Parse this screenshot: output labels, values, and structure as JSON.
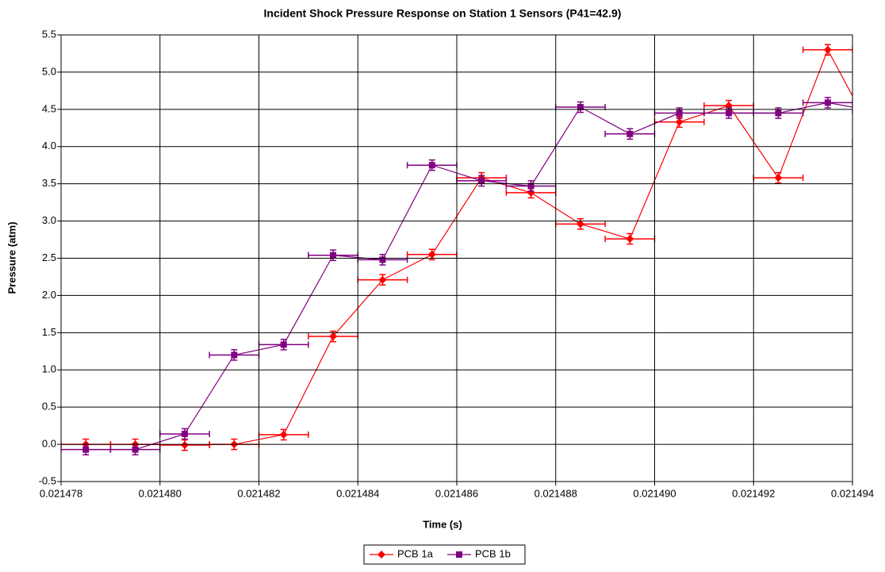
{
  "chart_data": {
    "type": "scatter_line",
    "title": "Incident Shock Pressure Response on Station 1 Sensors (P41=42.9)",
    "xlabel": "Time (s)",
    "ylabel": "Pressure (atm)",
    "x": [
      0.0214785,
      0.0214795,
      0.0214805,
      0.0214815,
      0.0214825,
      0.0214835,
      0.0214845,
      0.0214855,
      0.0214865,
      0.0214875,
      0.0214885,
      0.0214895,
      0.0214905,
      0.0214915,
      0.0214925,
      0.0214935,
      0.0214945
    ],
    "series": [
      {
        "name": "PCB 1a",
        "color": "#ff0000",
        "marker": "diamond",
        "x_error": 5e-07,
        "y_error": 0.07,
        "values": [
          0.0,
          0.0,
          -0.01,
          0.0,
          0.13,
          1.45,
          2.21,
          2.55,
          3.58,
          3.38,
          2.96,
          2.76,
          4.33,
          4.55,
          3.58,
          5.3,
          4.06
        ]
      },
      {
        "name": "PCB 1b",
        "color": "#800080",
        "marker": "square",
        "x_error": 5e-07,
        "y_error": 0.07,
        "values": [
          -0.07,
          -0.07,
          0.14,
          1.2,
          1.34,
          2.54,
          2.48,
          3.75,
          3.54,
          3.47,
          4.53,
          4.17,
          4.45,
          4.45,
          4.45,
          4.59,
          4.47
        ]
      }
    ],
    "xlim": [
      0.021478,
      0.021494
    ],
    "xticks": [
      0.021478,
      0.02148,
      0.021482,
      0.021484,
      0.021486,
      0.021488,
      0.02149,
      0.021492,
      0.021494
    ],
    "xtick_labels": [
      "0.021478",
      "0.021480",
      "0.021482",
      "0.021484",
      "0.021486",
      "0.021488",
      "0.021490",
      "0.021492",
      "0.021494"
    ],
    "ylim": [
      -0.5,
      5.5
    ],
    "yticks": [
      -0.5,
      {
        "value": 0,
        "label": "0.0"
      },
      0.5,
      {
        "value": 1,
        "label": "1.0"
      },
      1.5,
      {
        "value": 2,
        "label": "2.0"
      },
      2.5,
      {
        "value": 3,
        "label": "3.0"
      },
      3.5,
      {
        "value": 4,
        "label": "4.0"
      },
      4.5,
      {
        "value": 5,
        "label": "5.0"
      },
      5.5
    ],
    "grid": true,
    "legend": "bottom"
  }
}
